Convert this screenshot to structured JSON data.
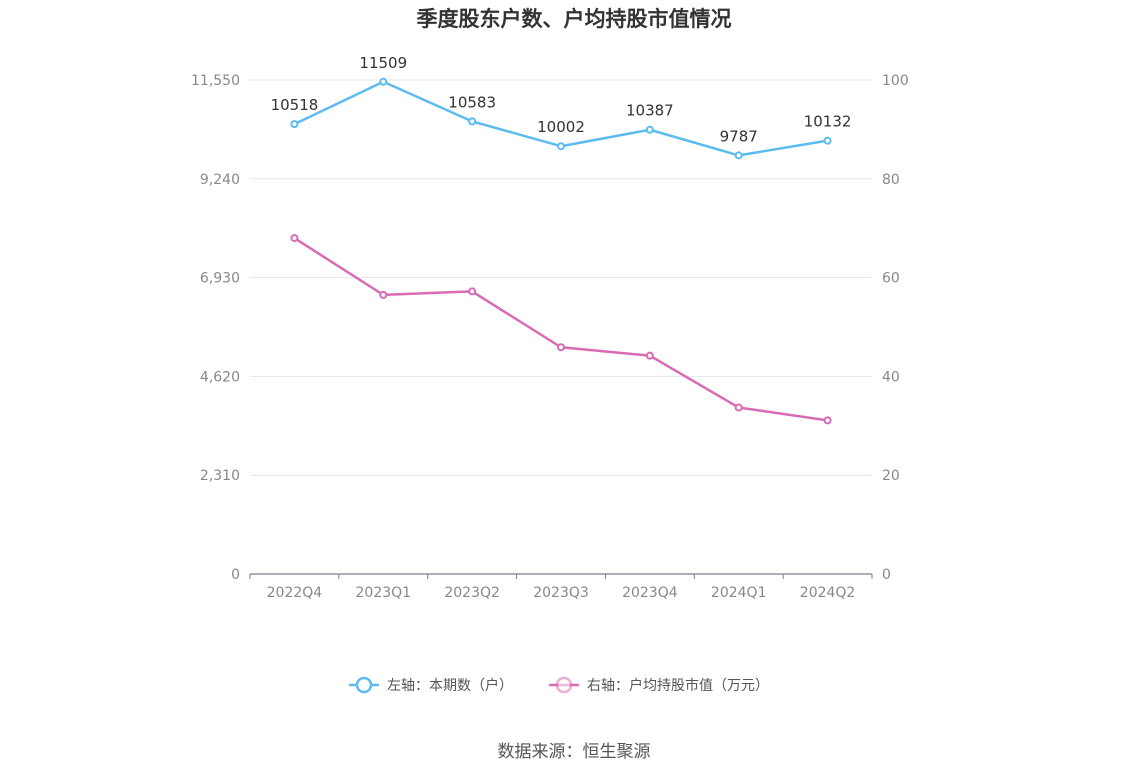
{
  "chart_data": {
    "type": "line",
    "title": "季度股东户数、户均持股市值情况",
    "categories": [
      "2022Q4",
      "2023Q1",
      "2023Q2",
      "2023Q3",
      "2023Q4",
      "2024Q1",
      "2024Q2"
    ],
    "left_axis": {
      "ylim": [
        0,
        11550
      ],
      "ticks": [
        "0",
        "2,310",
        "4,620",
        "6,930",
        "9,240",
        "11,550"
      ]
    },
    "right_axis": {
      "ylim": [
        0,
        100
      ],
      "ticks": [
        "0",
        "20",
        "40",
        "60",
        "80",
        "100"
      ]
    },
    "series": [
      {
        "name": "左轴：本期数（户）",
        "axis": "left",
        "color": "#5bbcf0",
        "values": [
          10518,
          11509,
          10583,
          10002,
          10387,
          9787,
          10132
        ],
        "labels": [
          "10518",
          "11509",
          "10583",
          "10002",
          "10387",
          "9787",
          "10132"
        ]
      },
      {
        "name": "右轴：户均持股市值（万元）",
        "axis": "right",
        "color": "#d96bb5",
        "values": [
          68.0,
          56.5,
          57.2,
          45.9,
          44.2,
          33.7,
          31.1
        ]
      }
    ],
    "grid": true,
    "legend_position": "bottom"
  },
  "source": "数据来源：恒生聚源"
}
